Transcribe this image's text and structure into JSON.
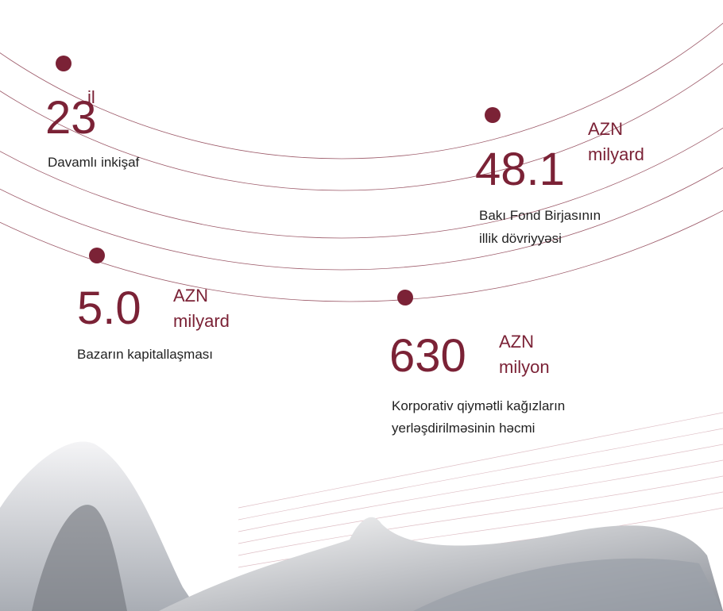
{
  "stats": [
    {
      "value": "23",
      "unit": [
        "il"
      ],
      "label": [
        "Davamlı inkişaf"
      ]
    },
    {
      "value": "48.1",
      "unit": [
        "AZN",
        "milyard"
      ],
      "label": [
        "Bakı Fond Birjasının",
        "illik dövriyyəsi"
      ]
    },
    {
      "value": "5.0",
      "unit": [
        "AZN",
        "milyard"
      ],
      "label": [
        "Bazarın kapitallaşması"
      ]
    },
    {
      "value": "630",
      "unit": [
        "AZN",
        "milyon"
      ],
      "label": [
        "Korporativ qiymətli kağızların",
        "yerləşdirilməsinin həcmi"
      ]
    }
  ]
}
